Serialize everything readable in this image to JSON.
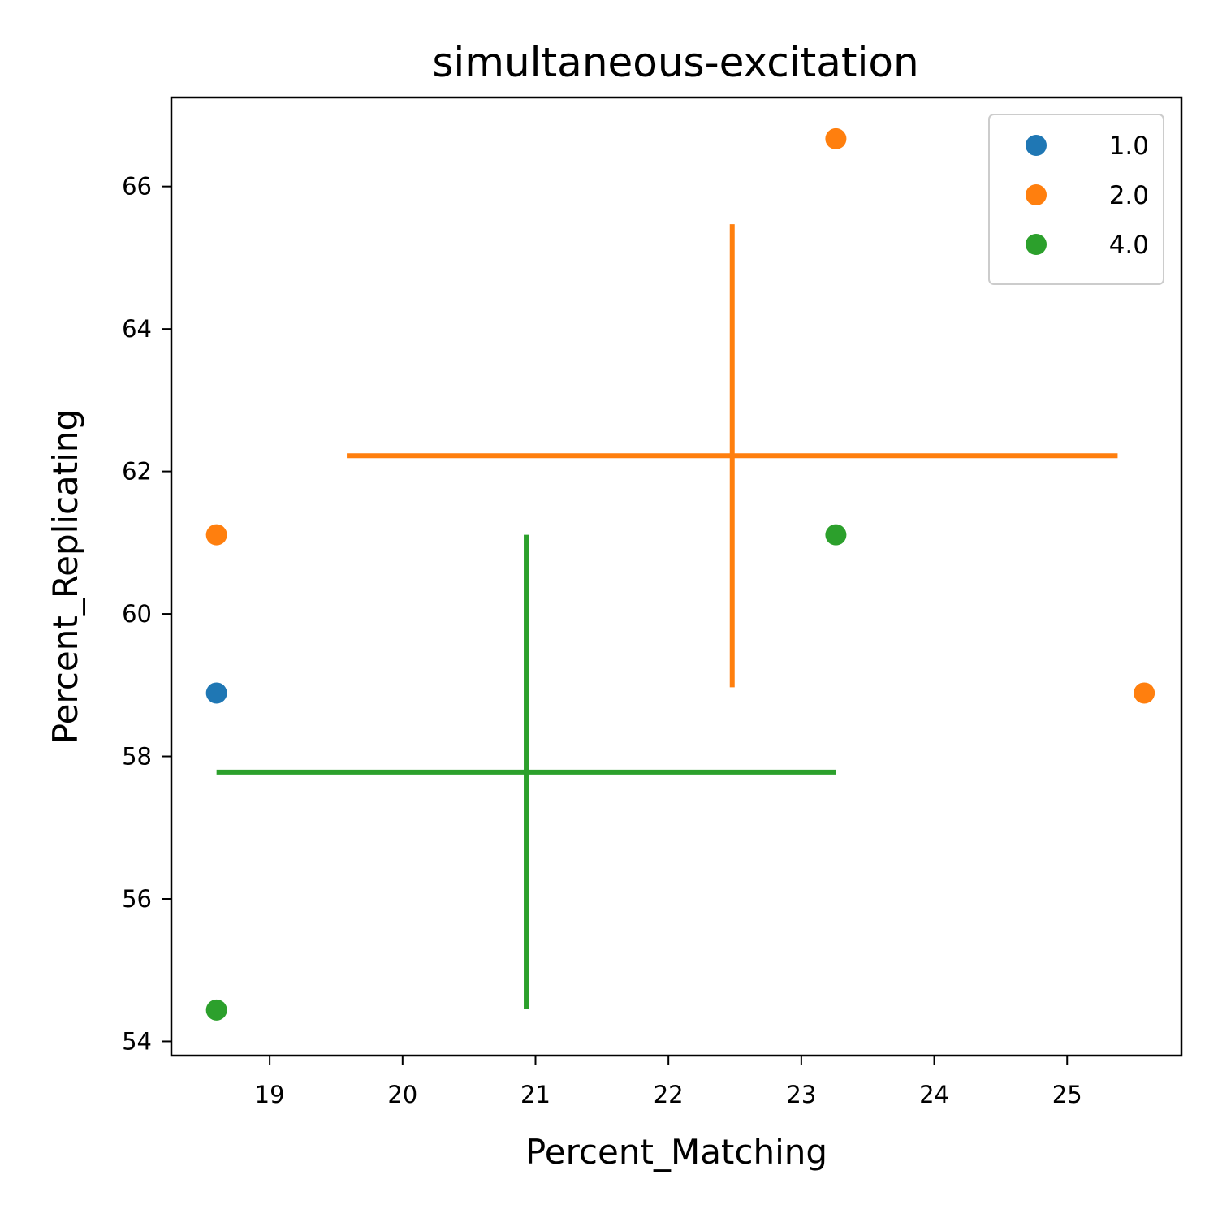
{
  "chart_data": {
    "type": "scatter",
    "title": "simultaneous-excitation",
    "xlabel": "Percent_Matching",
    "ylabel": "Percent_Replicating",
    "xlim": [
      18.26,
      25.86
    ],
    "ylim": [
      53.8,
      67.25
    ],
    "xticks": [
      19,
      20,
      21,
      22,
      23,
      24,
      25
    ],
    "yticks": [
      54,
      56,
      58,
      60,
      62,
      64,
      66
    ],
    "grid": false,
    "legend_position": "top-right",
    "series": [
      {
        "name": "1.0",
        "color": "#1f77b4",
        "points": [
          {
            "x": 18.6,
            "y": 58.89
          }
        ]
      },
      {
        "name": "2.0",
        "color": "#ff7f0e",
        "points": [
          {
            "x": 18.6,
            "y": 61.11
          },
          {
            "x": 23.26,
            "y": 66.67
          },
          {
            "x": 25.58,
            "y": 58.89
          }
        ],
        "errorbar": {
          "x": 22.48,
          "y": 62.22,
          "x_err": 2.9,
          "y_err": 3.25
        }
      },
      {
        "name": "4.0",
        "color": "#2ca02c",
        "points": [
          {
            "x": 18.6,
            "y": 54.44
          },
          {
            "x": 23.26,
            "y": 61.11
          }
        ],
        "errorbar": {
          "x": 20.93,
          "y": 57.78,
          "x_err": 2.33,
          "y_err": 3.33
        }
      }
    ]
  }
}
